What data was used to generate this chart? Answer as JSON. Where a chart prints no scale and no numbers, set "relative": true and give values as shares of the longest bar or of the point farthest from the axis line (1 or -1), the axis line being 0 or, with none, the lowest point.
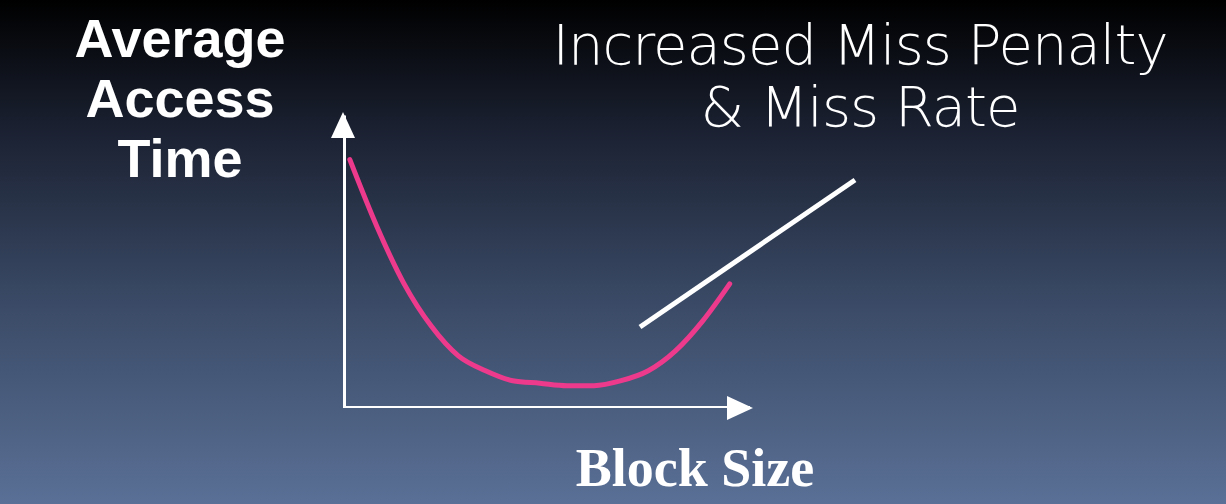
{
  "chart_data": {
    "type": "line",
    "relative": true,
    "ylabel": "Average Access Time",
    "xlabel": "Block Size",
    "annotations": [
      "Increased Miss Penalty & Miss Rate"
    ],
    "categories": [
      null,
      null,
      null,
      null,
      null,
      null,
      null,
      null,
      null,
      null,
      null,
      null,
      null,
      null,
      null
    ],
    "series": [
      {
        "color": "#ee3a8c",
        "values": [
          1.0,
          0.73,
          0.5,
          0.33,
          0.21,
          0.15,
          0.11,
          0.1,
          0.09,
          0.09,
          0.11,
          0.15,
          0.23,
          0.35,
          0.5
        ]
      }
    ]
  }
}
